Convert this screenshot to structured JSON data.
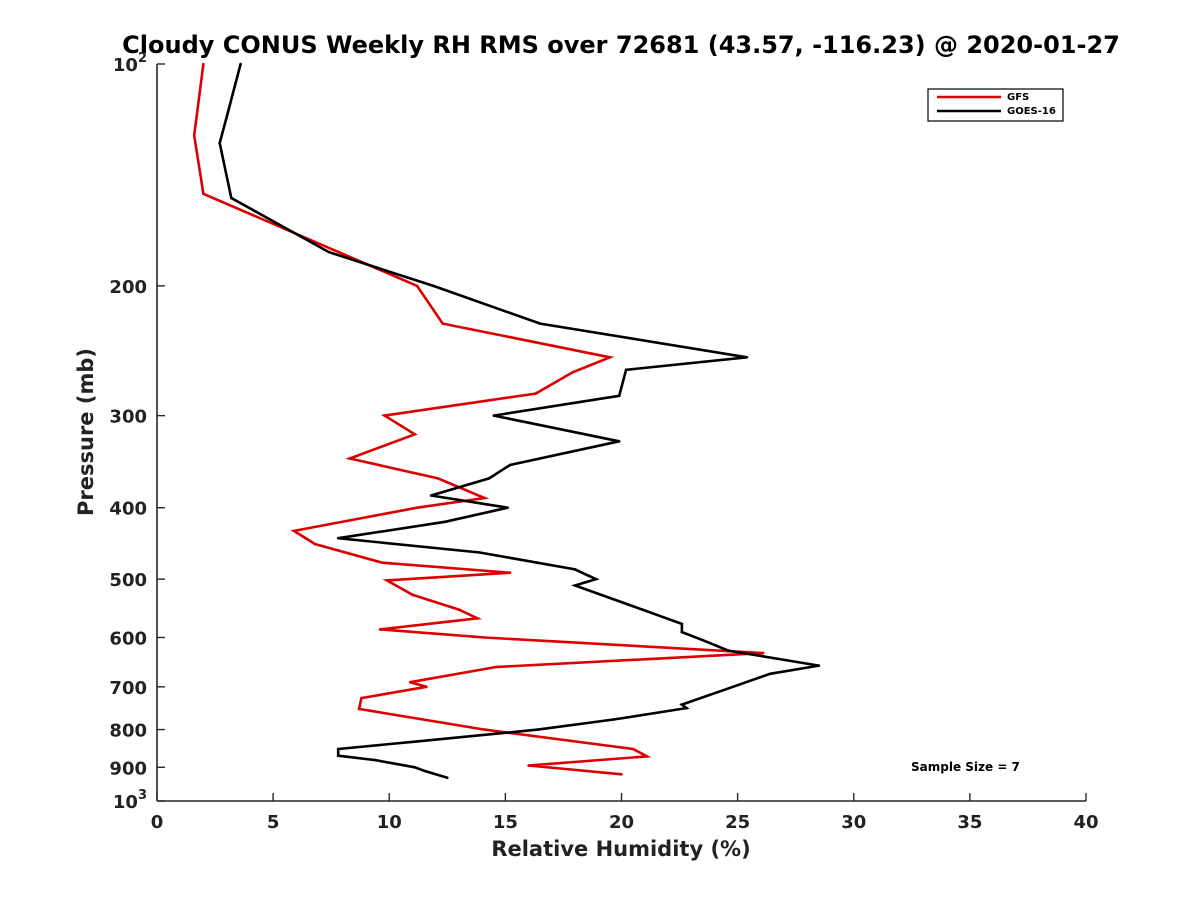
{
  "chart_data": {
    "type": "line",
    "title": "Cloudy CONUS Weekly RH RMS over 72681 (43.57, -116.23) @ 2020-01-27",
    "xlabel": "Relative Humidity (%)",
    "ylabel": "Pressure (mb)",
    "xlim": [
      0,
      40
    ],
    "ylim": [
      100,
      1000
    ],
    "y_scale": "log",
    "y_reversed": true,
    "grid": false,
    "legend_position": "top-right",
    "annotation": "Sample Size = 7",
    "x_ticks": [
      "0",
      "5",
      "10",
      "15",
      "20",
      "25",
      "30",
      "35",
      "40"
    ],
    "y_ticks": [
      {
        "value": 100,
        "base": "10",
        "exp": "2"
      },
      {
        "value": 200,
        "label": "200"
      },
      {
        "value": 300,
        "label": "300"
      },
      {
        "value": 400,
        "label": "400"
      },
      {
        "value": 500,
        "label": "500"
      },
      {
        "value": 600,
        "label": "600"
      },
      {
        "value": 700,
        "label": "700"
      },
      {
        "value": 800,
        "label": "800"
      },
      {
        "value": 900,
        "label": "900"
      },
      {
        "value": 1000,
        "base": "10",
        "exp": "3"
      }
    ],
    "series": [
      {
        "name": "GFS",
        "color": "#dd0000",
        "points": [
          [
            2.0,
            100
          ],
          [
            1.6,
            125
          ],
          [
            2.0,
            150
          ],
          [
            11.2,
            200
          ],
          [
            12.3,
            225
          ],
          [
            19.5,
            250
          ],
          [
            17.9,
            262
          ],
          [
            16.3,
            280
          ],
          [
            9.8,
            300
          ],
          [
            11.1,
            318
          ],
          [
            8.3,
            343
          ],
          [
            12.1,
            365
          ],
          [
            14.1,
            388
          ],
          [
            11.2,
            400
          ],
          [
            5.9,
            430
          ],
          [
            6.8,
            448
          ],
          [
            9.7,
            475
          ],
          [
            15.2,
            490
          ],
          [
            9.9,
            502
          ],
          [
            11.0,
            525
          ],
          [
            13.0,
            550
          ],
          [
            13.8,
            565
          ],
          [
            9.6,
            585
          ],
          [
            14.1,
            600
          ],
          [
            26.1,
            630
          ],
          [
            14.6,
            658
          ],
          [
            10.9,
            690
          ],
          [
            11.6,
            700
          ],
          [
            8.8,
            725
          ],
          [
            8.7,
            750
          ],
          [
            14.1,
            800
          ],
          [
            20.5,
            850
          ],
          [
            21.1,
            870
          ],
          [
            16.0,
            895
          ],
          [
            20.0,
            920
          ]
        ]
      },
      {
        "name": "GOES-16",
        "color": "#000000",
        "points": [
          [
            3.6,
            100
          ],
          [
            3.0,
            118
          ],
          [
            2.7,
            128
          ],
          [
            3.2,
            152
          ],
          [
            7.4,
            180
          ],
          [
            11.9,
            200
          ],
          [
            16.5,
            225
          ],
          [
            25.4,
            250
          ],
          [
            20.2,
            260
          ],
          [
            19.9,
            282
          ],
          [
            14.5,
            300
          ],
          [
            19.9,
            325
          ],
          [
            15.2,
            350
          ],
          [
            14.3,
            365
          ],
          [
            11.8,
            385
          ],
          [
            15.1,
            400
          ],
          [
            12.4,
            418
          ],
          [
            7.8,
            440
          ],
          [
            13.9,
            460
          ],
          [
            18.0,
            485
          ],
          [
            18.6,
            495
          ],
          [
            18.9,
            500
          ],
          [
            18.0,
            510
          ],
          [
            20.9,
            550
          ],
          [
            22.6,
            575
          ],
          [
            22.6,
            590
          ],
          [
            23.5,
            605
          ],
          [
            24.6,
            625
          ],
          [
            28.5,
            655
          ],
          [
            26.4,
            672
          ],
          [
            24.8,
            700
          ],
          [
            22.6,
            740
          ],
          [
            22.8,
            748
          ],
          [
            19.7,
            775
          ],
          [
            16.4,
            800
          ],
          [
            11.2,
            830
          ],
          [
            7.8,
            850
          ],
          [
            7.8,
            868
          ],
          [
            9.4,
            880
          ],
          [
            11.1,
            900
          ],
          [
            11.5,
            910
          ],
          [
            12.5,
            930
          ]
        ]
      }
    ]
  }
}
